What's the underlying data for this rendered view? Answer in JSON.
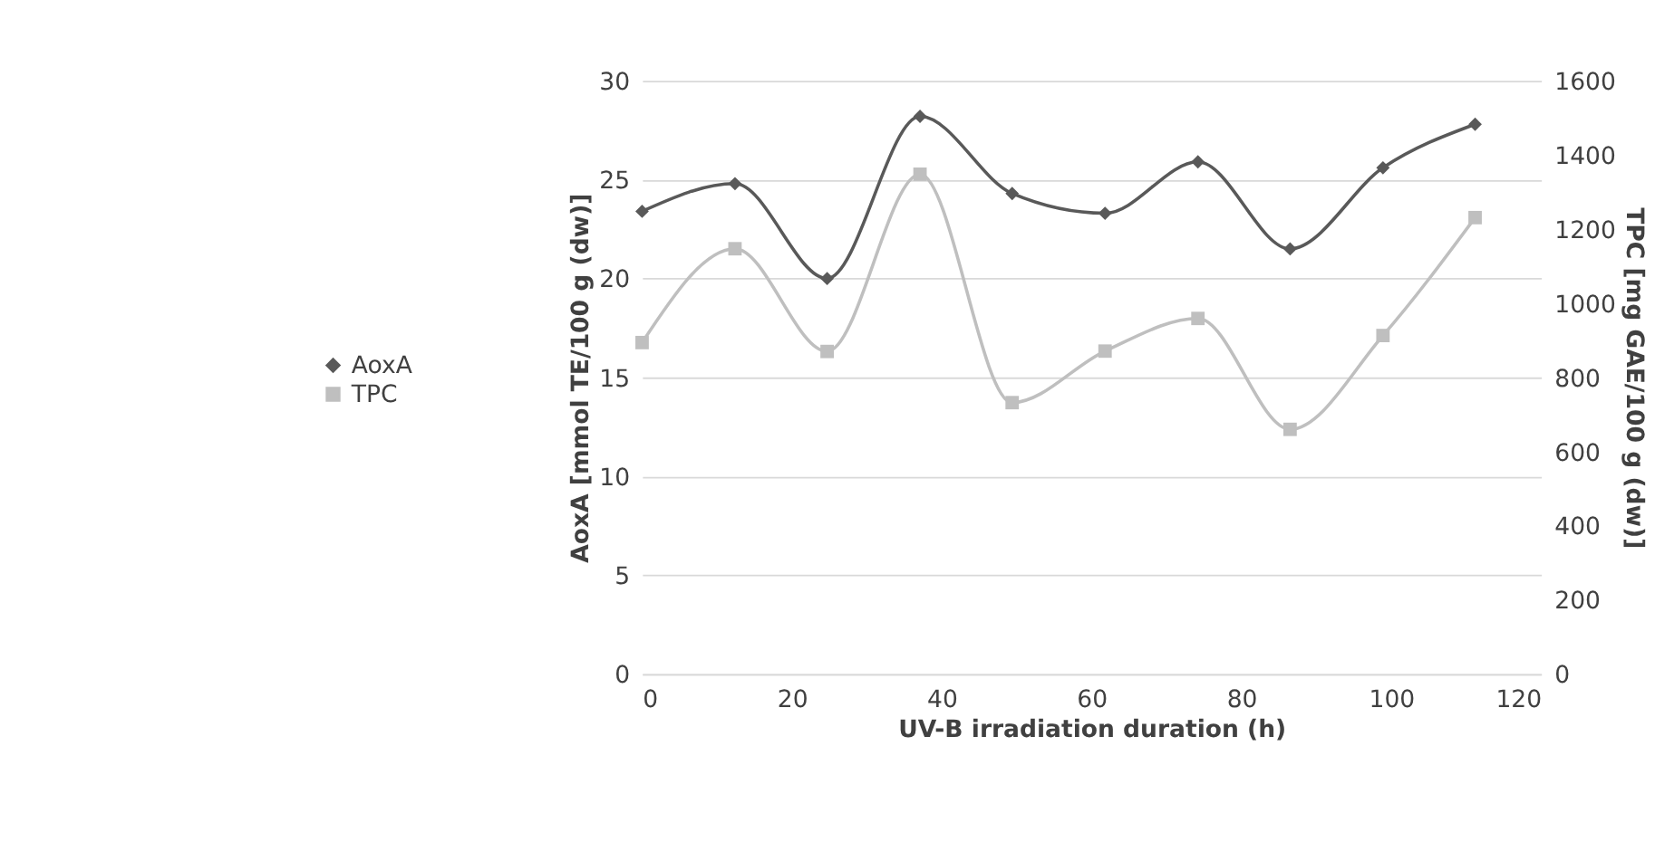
{
  "chart_data": {
    "type": "line",
    "xlabel": "UV-B irradiation duration (h)",
    "ylabel": "AoxA [mmol TE/100 g (dw)]",
    "y2label": "TPC [mg GAE/100 g (dw)]",
    "x": [
      0,
      12.4,
      24.7,
      37.1,
      49.4,
      61.8,
      74.2,
      86.5,
      98.9,
      111.2
    ],
    "series": [
      {
        "name": "AoxA",
        "color": "#595959",
        "marker": "diamond",
        "values": [
          23.4,
          24.8,
          20.0,
          28.2,
          24.3,
          23.3,
          25.9,
          21.5,
          25.6,
          27.8
        ]
      },
      {
        "name": "TPC",
        "color": "#bfbfbf",
        "marker": "square",
        "axis": "y2",
        "values": [
          894,
          1147,
          870,
          1348,
          732,
          871,
          959,
          660,
          913,
          1231
        ]
      }
    ],
    "xlim": [
      0,
      120
    ],
    "xticks": [
      0,
      20,
      40,
      60,
      80,
      100,
      120
    ],
    "ylim": [
      0,
      30
    ],
    "yticks": [
      0,
      5,
      10,
      15,
      20,
      25,
      30
    ],
    "y2lim": [
      0,
      1600
    ],
    "y2ticks": [
      0,
      200,
      400,
      600,
      800,
      1000,
      1200,
      1400,
      1600
    ],
    "grid": "y",
    "legend": "left",
    "line_style": "solid"
  }
}
